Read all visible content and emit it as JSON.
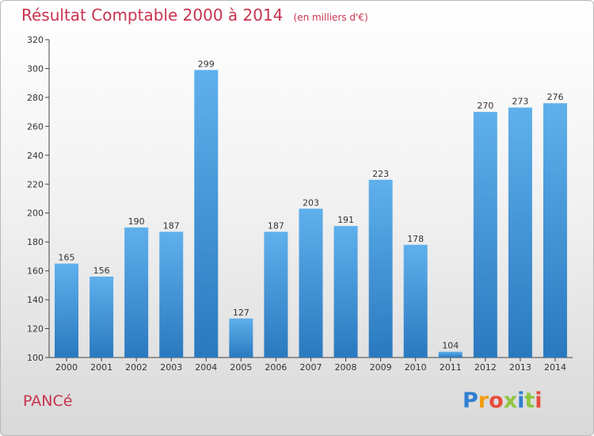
{
  "chart_data": {
    "type": "bar",
    "title": "Résultat Comptable 2000 à 2014",
    "subtitle": "(en milliers d'€)",
    "categories": [
      "2000",
      "2001",
      "2002",
      "2003",
      "2004",
      "2005",
      "2006",
      "2007",
      "2008",
      "2009",
      "2010",
      "2011",
      "2012",
      "2013",
      "2014"
    ],
    "values": [
      165,
      156,
      190,
      187,
      299,
      127,
      187,
      203,
      191,
      223,
      178,
      104,
      270,
      273,
      276
    ],
    "ylim": [
      100,
      320
    ],
    "yticks": [
      100,
      120,
      140,
      160,
      180,
      200,
      220,
      240,
      260,
      280,
      300,
      320
    ],
    "xlabel": "",
    "ylabel": "",
    "grid": false,
    "bar_color": "#3a8fd6"
  },
  "footer": {
    "commune": "PANCé",
    "logo": {
      "letters": [
        "P",
        "r",
        "o",
        "x",
        "i",
        "t",
        "i"
      ],
      "colors": [
        "#2f7fd1",
        "#f39c12",
        "#e74c3c",
        "#8ec63f",
        "#2f7fd1",
        "#8ec63f",
        "#e74c3c"
      ]
    }
  }
}
